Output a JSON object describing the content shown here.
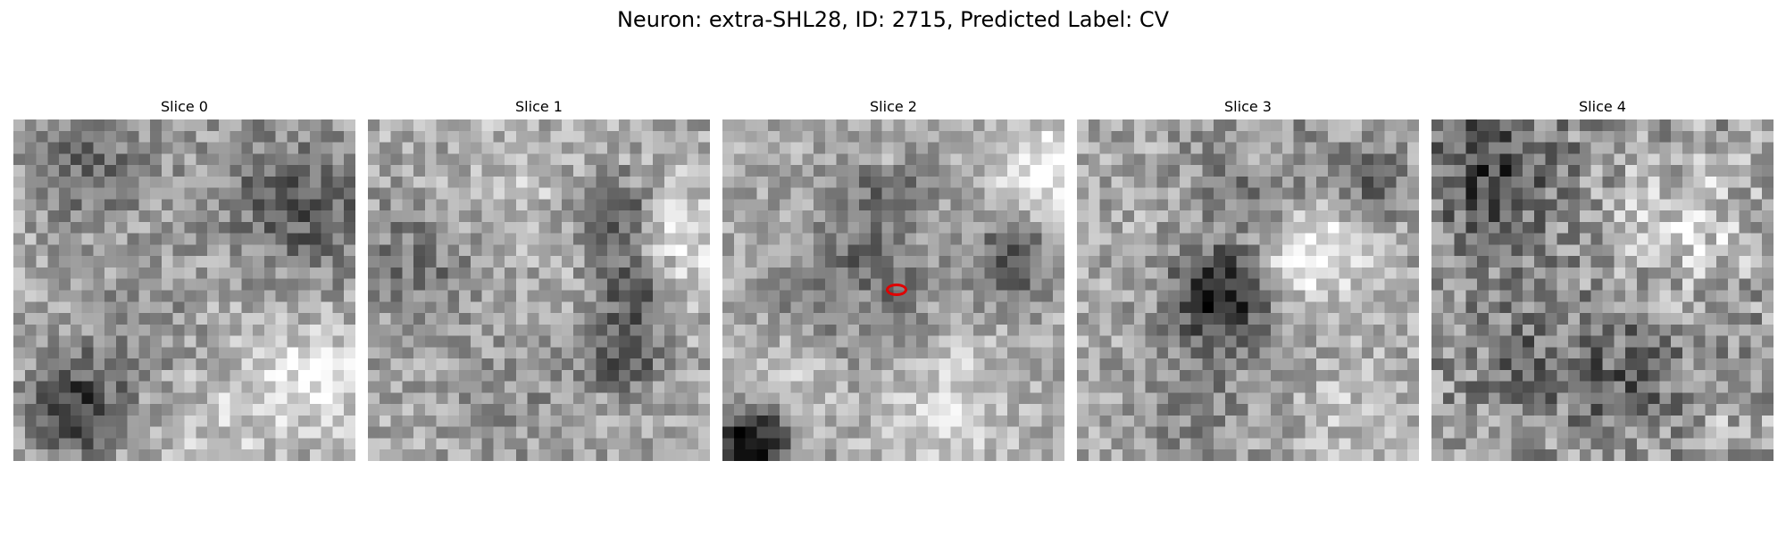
{
  "figure": {
    "title": "Neuron: extra-SHL28, ID: 2715, Predicted Label: CV"
  },
  "panels": [
    {
      "title": "Slice 0"
    },
    {
      "title": "Slice 1"
    },
    {
      "title": "Slice 2"
    },
    {
      "title": "Slice 3"
    },
    {
      "title": "Slice 4"
    }
  ],
  "colors": {
    "marker": "#e00000",
    "background": "#ffffff"
  }
}
